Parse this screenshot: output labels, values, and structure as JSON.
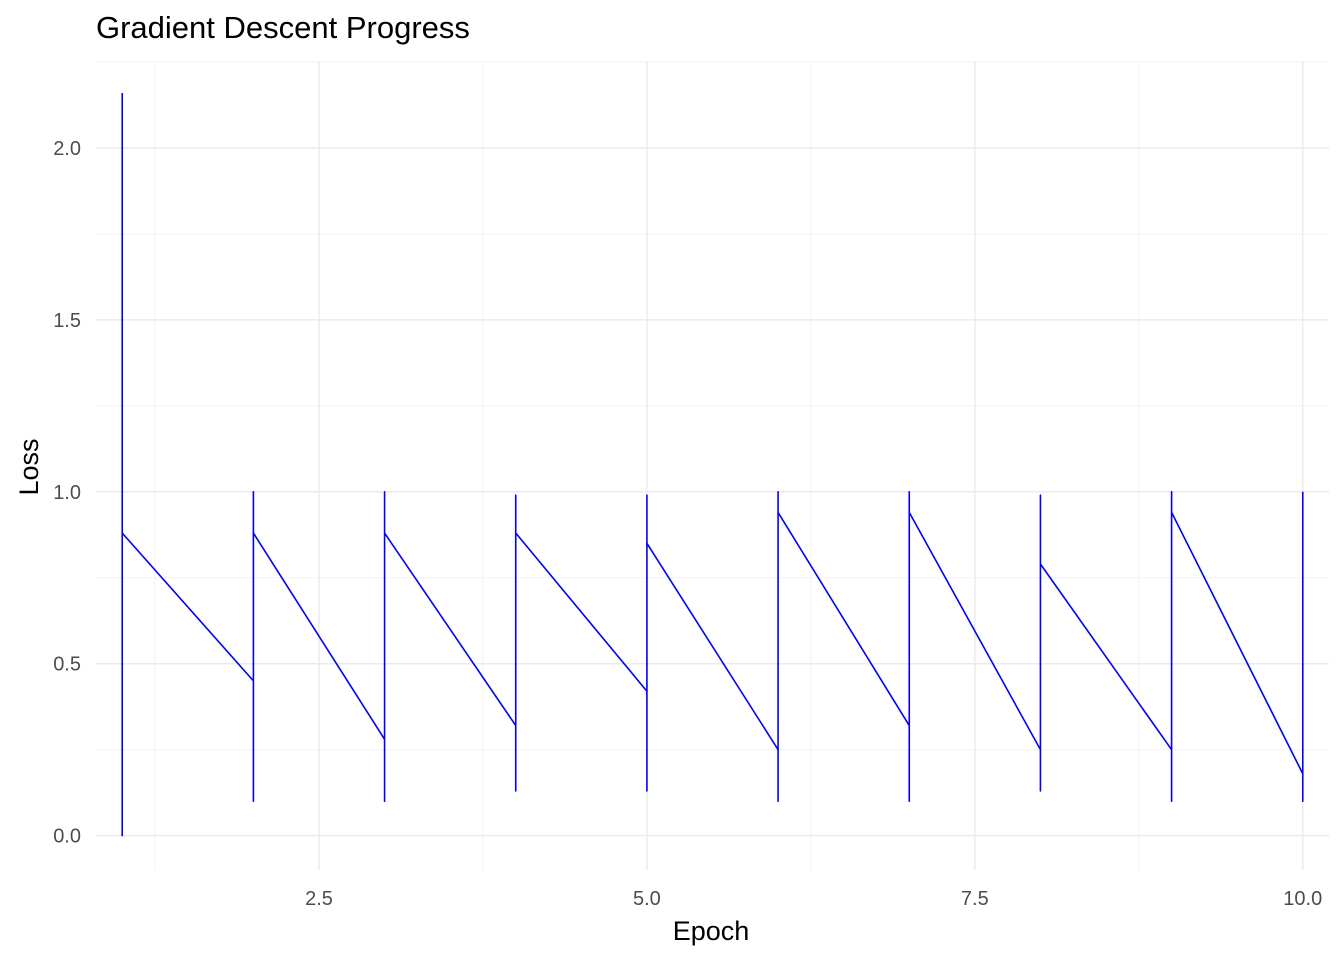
{
  "colors": {
    "background": "#ffffff",
    "grid_major": "#ebebeb",
    "grid_minor": "#f3f3f3",
    "line": "#0000ff",
    "tick_text": "#4d4d4d",
    "label_text": "#000000"
  },
  "chart_data": {
    "type": "line",
    "title": "Gradient Descent Progress",
    "xlabel": "Epoch",
    "ylabel": "Loss",
    "xlim": [
      0.8,
      10.2
    ],
    "ylim": [
      -0.1,
      2.25
    ],
    "xticks": [
      2.5,
      5.0,
      7.5,
      10.0
    ],
    "xtick_labels": [
      "2.5",
      "5.0",
      "7.5",
      "10.0"
    ],
    "yticks": [
      0.0,
      0.5,
      1.0,
      1.5,
      2.0
    ],
    "ytick_labels": [
      "0.0",
      "0.5",
      "1.0",
      "1.5",
      "2.0"
    ],
    "grid": true,
    "legend": "none",
    "series": [
      {
        "color": "#0000ff",
        "x": [
          1,
          1,
          1,
          2,
          2,
          2,
          2,
          3,
          3,
          3,
          3,
          4,
          4,
          4,
          4,
          5,
          5,
          5,
          5,
          6,
          6,
          6,
          6,
          7,
          7,
          7,
          7,
          8,
          8,
          8,
          8,
          9,
          9,
          9,
          9,
          10,
          10,
          10
        ],
        "y": [
          2.16,
          0.0,
          0.88,
          0.45,
          0.1,
          1.0,
          0.88,
          0.28,
          0.1,
          1.0,
          0.88,
          0.32,
          0.13,
          0.99,
          0.88,
          0.42,
          0.13,
          0.99,
          0.85,
          0.25,
          0.1,
          1.0,
          0.94,
          0.32,
          0.1,
          1.0,
          0.94,
          0.25,
          0.13,
          0.99,
          0.79,
          0.25,
          0.1,
          1.0,
          0.94,
          0.18,
          0.1,
          1.0
        ]
      }
    ]
  }
}
